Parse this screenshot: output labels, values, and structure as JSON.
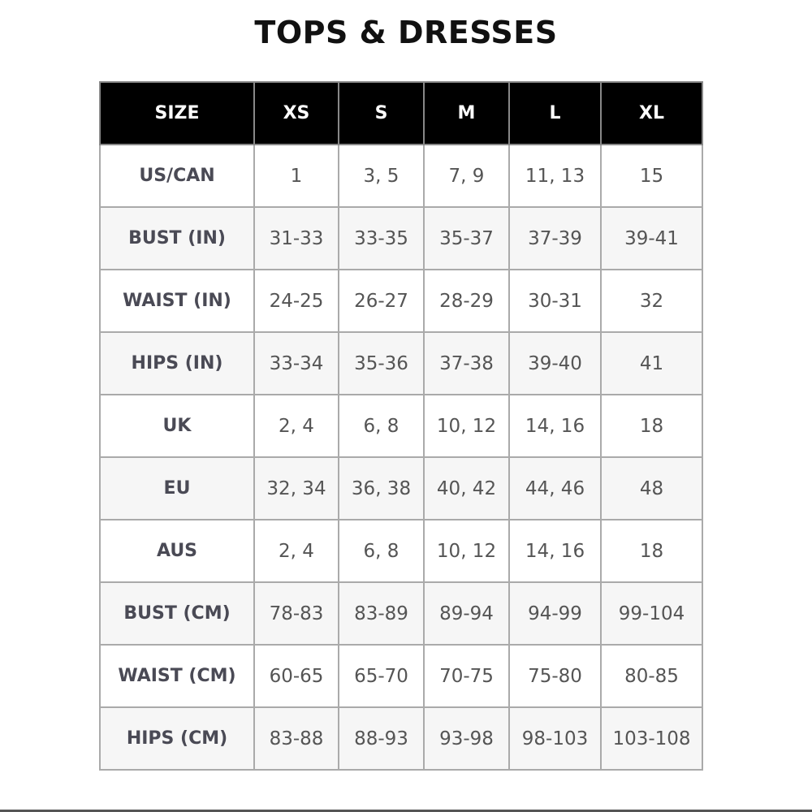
{
  "title": "TOPS & DRESSES",
  "table": {
    "header": [
      "SIZE",
      "XS",
      "S",
      "M",
      "L",
      "XL"
    ],
    "rows": [
      [
        "US/CAN",
        "1",
        "3, 5",
        "7, 9",
        "11, 13",
        "15"
      ],
      [
        "BUST (IN)",
        "31-33",
        "33-35",
        "35-37",
        "37-39",
        "39-41"
      ],
      [
        "WAIST (IN)",
        "24-25",
        "26-27",
        "28-29",
        "30-31",
        "32"
      ],
      [
        "HIPS (IN)",
        "33-34",
        "35-36",
        "37-38",
        "39-40",
        "41"
      ],
      [
        "UK",
        "2, 4",
        "6, 8",
        "10, 12",
        "14, 16",
        "18"
      ],
      [
        "EU",
        "32, 34",
        "36, 38",
        "40, 42",
        "44, 46",
        "48"
      ],
      [
        "AUS",
        "2, 4",
        "6, 8",
        "10, 12",
        "14, 16",
        "18"
      ],
      [
        "BUST (CM)",
        "78-83",
        "83-89",
        "89-94",
        "94-99",
        "99-104"
      ],
      [
        "WAIST (CM)",
        "60-65",
        "65-70",
        "70-75",
        "75-80",
        "80-85"
      ],
      [
        "HIPS (CM)",
        "83-88",
        "88-93",
        "93-98",
        "98-103",
        "103-108"
      ]
    ]
  }
}
